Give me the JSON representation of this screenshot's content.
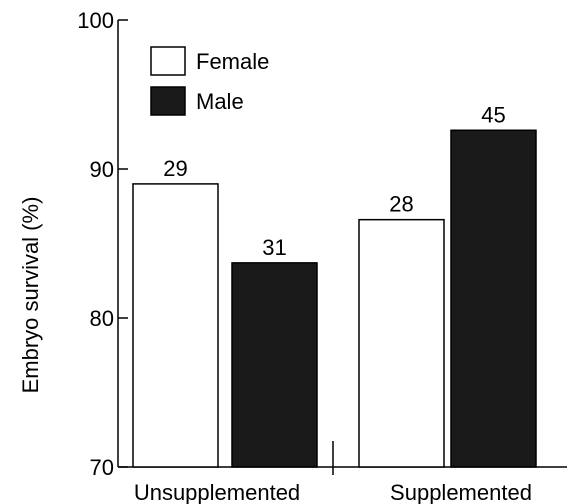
{
  "chart_data": {
    "type": "bar",
    "ylabel": "Embryo survival (%)",
    "xlabel": "",
    "ylim": [
      70,
      100
    ],
    "yticks": [
      "70",
      "80",
      "90",
      "100"
    ],
    "categories": [
      "Unsupplemented",
      "Supplemented"
    ],
    "series": [
      {
        "name": "Female",
        "color": "#ffffff",
        "values": [
          89.0,
          86.6
        ],
        "labels": [
          "29",
          "28"
        ]
      },
      {
        "name": "Male",
        "color": "#1a1a1a",
        "values": [
          83.7,
          92.6
        ],
        "labels": [
          "31",
          "45"
        ]
      }
    ],
    "legend": {
      "position": "top-left"
    },
    "grid": false
  }
}
